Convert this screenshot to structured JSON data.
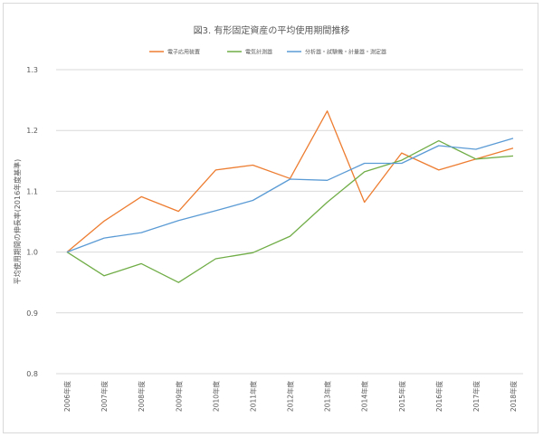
{
  "chart_data": {
    "type": "line",
    "title": "図3. 有形固定資産の平均使用期間推移",
    "ylabel": "平均使用期間の伸長率(2016年度基準)",
    "xlabel": "",
    "ylim": [
      0.8,
      1.3
    ],
    "yticks": [
      "0.8",
      "0.9",
      "1.0",
      "1.1",
      "1.2",
      "1.3"
    ],
    "categories": [
      "2006年度",
      "2007年度",
      "2008年度",
      "2009年度",
      "2010年度",
      "2011年度",
      "2012年度",
      "2013年度",
      "2014年度",
      "2015年度",
      "2016年度",
      "2017年度",
      "2018年度"
    ],
    "legend_position": "top",
    "grid": true,
    "series": [
      {
        "name": "電子応用装置",
        "color": "#ed7d31",
        "values": [
          1.0,
          1.051,
          1.091,
          1.067,
          1.135,
          1.143,
          1.121,
          1.232,
          1.082,
          1.163,
          1.135,
          1.153,
          1.171
        ]
      },
      {
        "name": "電気計測器",
        "color": "#70ad47",
        "values": [
          1.0,
          0.961,
          0.981,
          0.95,
          0.989,
          0.999,
          1.026,
          1.082,
          1.132,
          1.151,
          1.183,
          1.153,
          1.158
        ]
      },
      {
        "name": "分析器・試験機・計量器・測定器",
        "color": "#5b9bd5",
        "values": [
          1.0,
          1.023,
          1.032,
          1.052,
          1.068,
          1.085,
          1.12,
          1.118,
          1.146,
          1.146,
          1.175,
          1.169,
          1.187
        ]
      }
    ]
  }
}
